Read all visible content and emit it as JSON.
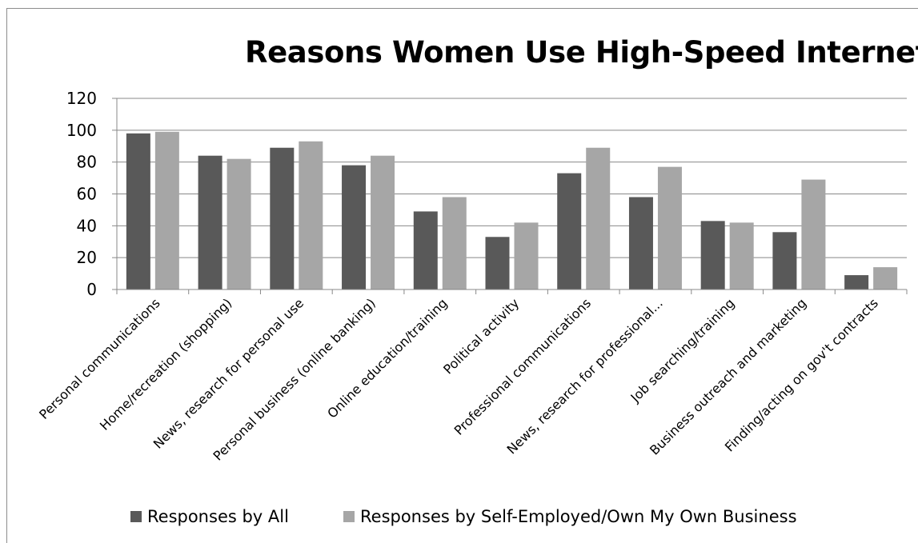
{
  "chart_data": {
    "type": "bar",
    "title": "Reasons Women Use High-Speed Internet",
    "xlabel": "",
    "ylabel": "",
    "ylim": [
      0,
      120
    ],
    "yticks": [
      0,
      20,
      40,
      60,
      80,
      100,
      120
    ],
    "grid": true,
    "legend_position": "bottom",
    "categories": [
      "Personal communications",
      "Home/recreation (shopping)",
      "News, research for personal use",
      "Personal business (online banking)",
      "Online education/training",
      "Political activity",
      "Professional communications",
      "News, research for professional...",
      "Job searching/training",
      "Business outreach and marketing",
      "Finding/acting on gov't contracts"
    ],
    "series": [
      {
        "name": "Responses by All",
        "color": "#595959",
        "values": [
          98,
          84,
          89,
          78,
          49,
          33,
          73,
          58,
          43,
          36,
          9
        ]
      },
      {
        "name": "Responses by Self-Employed/Own My Own Business",
        "color": "#a6a6a6",
        "values": [
          99,
          82,
          93,
          84,
          58,
          42,
          89,
          77,
          42,
          69,
          14
        ]
      }
    ]
  }
}
